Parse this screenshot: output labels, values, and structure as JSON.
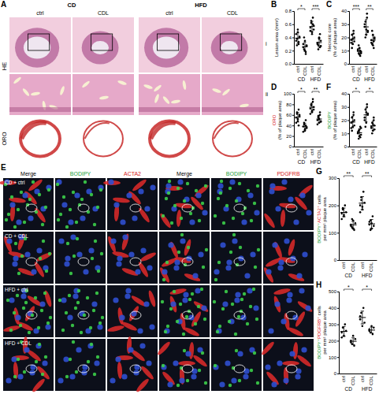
{
  "figure": {
    "panel_A": {
      "label": "A",
      "group_headers": [
        "CD",
        "HFD"
      ],
      "column_headers": [
        "ctrl",
        "CDL",
        "ctrl",
        "CDL"
      ],
      "row_labels": [
        "HE",
        "ORO"
      ],
      "subrow_labels": [
        "i",
        "ii"
      ]
    },
    "panel_E": {
      "label": "E",
      "column_headers": [
        {
          "text": "Merge",
          "color": "#000000"
        },
        {
          "text": "BODIPY",
          "color": "#1a9e3a"
        },
        {
          "text": "ACTA2",
          "color": "#d62020"
        },
        {
          "text": "Merge",
          "color": "#000000"
        },
        {
          "text": "BODIPY",
          "color": "#1a9e3a"
        },
        {
          "text": "PDGFRB",
          "color": "#d62020"
        }
      ],
      "row_labels": [
        "CD + ctrl",
        "CD + CDL",
        "HFD + ctrl",
        "HFD + CDL"
      ]
    }
  },
  "chart_data": [
    {
      "panel": "B",
      "type": "strip",
      "color": "#000000",
      "y_label": [
        [
          {
            "text": "Lesion area (mm²)",
            "color": "#000000"
          }
        ]
      ],
      "categories": [
        "ctrl",
        "CDL",
        "ctrl",
        "CDL"
      ],
      "groups": [
        "CD",
        "HFD"
      ],
      "significance": [
        "*",
        "***"
      ],
      "ylim": [
        0,
        0.8
      ],
      "yticks": [
        {
          "value": 0,
          "label": "0.0"
        },
        {
          "value": 0.2,
          "label": "0.2"
        },
        {
          "value": 0.4,
          "label": "0.4"
        },
        {
          "value": 0.6,
          "label": "0.6"
        },
        {
          "value": 0.8,
          "label": "0.8"
        }
      ],
      "values": [
        [
          0.45,
          0.38,
          0.52,
          0.3,
          0.41,
          0.35,
          0.28,
          0.48,
          0.33,
          0.4
        ],
        [
          0.3,
          0.22,
          0.35,
          0.18,
          0.27,
          0.25,
          0.4,
          0.2,
          0.15,
          0.28
        ],
        [
          0.55,
          0.62,
          0.48,
          0.7,
          0.58,
          0.5,
          0.65,
          0.45,
          0.6,
          0.52
        ],
        [
          0.32,
          0.28,
          0.4,
          0.25,
          0.35,
          0.3,
          0.22,
          0.38,
          0.45,
          0.27
        ]
      ],
      "means": [
        0.39,
        0.26,
        0.565,
        0.322
      ],
      "errors": [
        0.08,
        0.07,
        0.08,
        0.07
      ]
    },
    {
      "panel": "C",
      "type": "strip",
      "color": "#000000",
      "y_label": [
        [
          {
            "text": "Necrotic core",
            "color": "#000000"
          }
        ],
        [
          {
            "text": "(% of plaque area)",
            "color": "#000000"
          }
        ]
      ],
      "categories": [
        "ctrl",
        "CDL",
        "ctrl",
        "CDL"
      ],
      "groups": [
        "CD",
        "HFD"
      ],
      "significance": [
        "***",
        "**"
      ],
      "ylim": [
        0,
        40
      ],
      "yticks": [
        0,
        10,
        20,
        30,
        40
      ],
      "values": [
        [
          18,
          22,
          15,
          25,
          20,
          16,
          12,
          19,
          23,
          17
        ],
        [
          10,
          8,
          12,
          6,
          9,
          11,
          14,
          7,
          10,
          8
        ],
        [
          28,
          32,
          22,
          35,
          25,
          30,
          20,
          26,
          38,
          24
        ],
        [
          18,
          15,
          22,
          12,
          20,
          16,
          25,
          14,
          17,
          19
        ]
      ],
      "means": [
        18.7,
        9.5,
        28,
        17.8
      ],
      "errors": [
        3.8,
        2.4,
        5.6,
        3.8
      ]
    },
    {
      "panel": "D",
      "type": "strip",
      "color": "#000000",
      "y_label": [
        [
          {
            "text": "ORO",
            "color": "#d62020"
          }
        ],
        [
          {
            "text": "(% of plaque area)",
            "color": "#000000"
          }
        ]
      ],
      "categories": [
        "ctrl",
        "CDL",
        "ctrl",
        "CDL"
      ],
      "groups": [
        "CD",
        "HFD"
      ],
      "significance": [
        "*",
        "**"
      ],
      "ylim": [
        0,
        100
      ],
      "yticks": [
        0,
        20,
        40,
        60,
        80,
        100
      ],
      "values": [
        [
          55,
          62,
          48,
          70,
          58,
          45,
          65,
          52,
          40,
          60
        ],
        [
          38,
          42,
          30,
          50,
          35,
          28,
          45,
          33,
          40,
          36
        ],
        [
          72,
          80,
          65,
          85,
          70,
          62,
          78,
          68,
          90,
          75
        ],
        [
          50,
          55,
          45,
          60,
          48,
          42,
          58,
          52,
          65,
          47
        ]
      ],
      "means": [
        55.5,
        37.7,
        74.5,
        52.2
      ],
      "errors": [
        9,
        6.5,
        8.5,
        7
      ]
    },
    {
      "panel": "F",
      "type": "strip",
      "color": "#000000",
      "y_label": [
        [
          {
            "text": "BODIPY",
            "color": "#1a9e3a"
          }
        ],
        [
          {
            "text": "(% of plaque area)",
            "color": "#000000"
          }
        ]
      ],
      "categories": [
        "ctrl",
        "CDL",
        "ctrl",
        "CDL"
      ],
      "groups": [
        "CD",
        "HFD"
      ],
      "significance": [
        "*",
        "*"
      ],
      "ylim": [
        0,
        40
      ],
      "yticks": [
        0,
        10,
        20,
        30,
        40
      ],
      "values": [
        [
          18,
          22,
          15,
          26,
          20,
          14,
          12,
          19,
          24,
          16
        ],
        [
          10,
          12,
          8,
          15,
          9,
          11,
          6,
          13,
          7,
          14
        ],
        [
          22,
          28,
          18,
          32,
          25,
          20,
          15,
          26,
          30,
          24
        ],
        [
          15,
          18,
          12,
          20,
          16,
          14,
          10,
          17,
          22,
          13
        ]
      ],
      "means": [
        18.6,
        10.5,
        24,
        15.7
      ],
      "errors": [
        4.3,
        3,
        5.2,
        3.5
      ]
    },
    {
      "panel": "G",
      "type": "strip",
      "color": "#000000",
      "y_label": [
        [
          {
            "text": "BODIPY⁺",
            "color": "#1a9e3a"
          },
          {
            "text": "ACTA2⁺",
            "color": "#d62020"
          },
          {
            "text": " cells",
            "color": "#000000"
          }
        ],
        [
          {
            "text": "per mm² plaque area",
            "color": "#000000"
          }
        ]
      ],
      "categories": [
        "ctrl",
        "CDL",
        "ctrl",
        "CDL"
      ],
      "groups": [
        "CD",
        "HFD"
      ],
      "significance": [
        "**",
        "**"
      ],
      "ylim": [
        0,
        300
      ],
      "yticks": [
        0,
        100,
        200,
        300
      ],
      "values": [
        [
          170,
          185,
          160,
          200,
          175,
          150,
          190,
          165
        ],
        [
          130,
          120,
          145,
          110,
          135,
          125,
          150,
          115
        ],
        [
          200,
          230,
          185,
          250,
          210,
          175,
          220,
          195
        ],
        [
          130,
          145,
          115,
          160,
          125,
          140,
          110,
          135
        ]
      ],
      "means": [
        174.4,
        128.8,
        208.1,
        132.5
      ],
      "errors": [
        16,
        13,
        24,
        16
      ]
    },
    {
      "panel": "H",
      "type": "strip",
      "color": "#000000",
      "y_label": [
        [
          {
            "text": "BODIPY⁺",
            "color": "#1a9e3a"
          },
          {
            "text": "PDGFRB⁺",
            "color": "#d62020"
          },
          {
            "text": " cells",
            "color": "#000000"
          }
        ],
        [
          {
            "text": "per mm² plaque area",
            "color": "#000000"
          }
        ]
      ],
      "categories": [
        "ctrl",
        "CDL",
        "ctrl",
        "CDL"
      ],
      "groups": [
        "CD",
        "HFD"
      ],
      "significance": [
        "*",
        "*"
      ],
      "ylim": [
        0,
        500
      ],
      "yticks": [
        0,
        100,
        200,
        300,
        400,
        500
      ],
      "values": [
        [
          250,
          280,
          230,
          300,
          260,
          220
        ],
        [
          200,
          180,
          230,
          170,
          210,
          190
        ],
        [
          330,
          370,
          290,
          400,
          310,
          350
        ],
        [
          270,
          250,
          290,
          240,
          280,
          260
        ]
      ],
      "means": [
        256.7,
        196.7,
        341.7,
        265
      ],
      "errors": [
        30,
        21,
        39,
        18
      ]
    }
  ]
}
